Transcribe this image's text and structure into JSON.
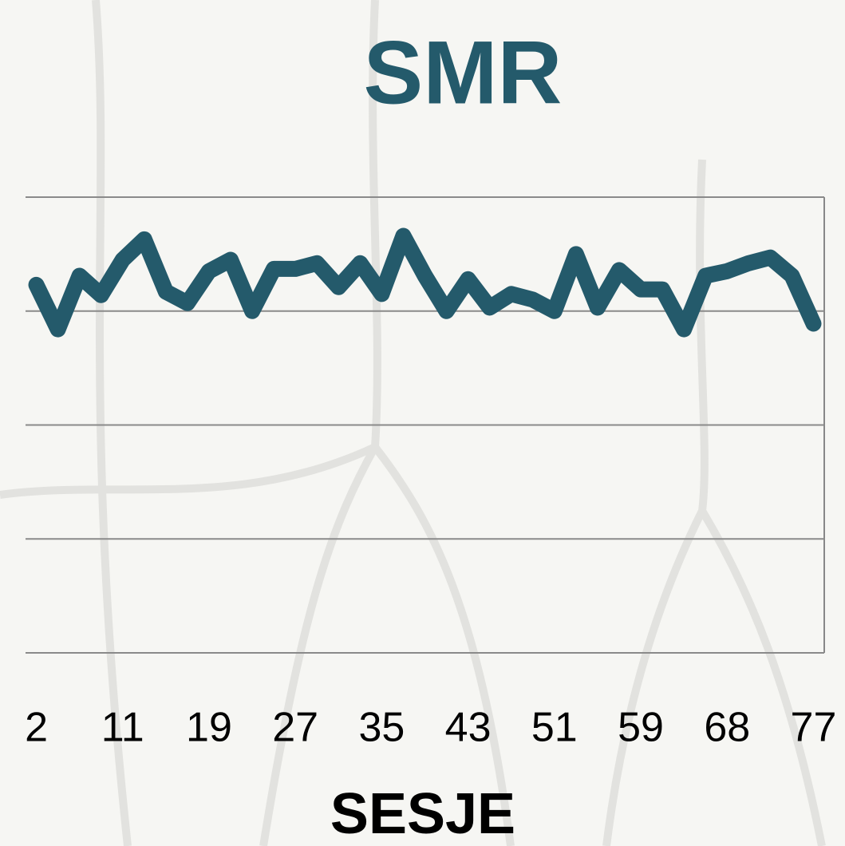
{
  "chart_data": {
    "type": "line",
    "title": "SMR",
    "x_label": "SESJE",
    "categories": [
      "2",
      null,
      null,
      null,
      "11",
      null,
      null,
      null,
      "19",
      null,
      null,
      null,
      "27",
      null,
      null,
      null,
      "35",
      null,
      null,
      null,
      "43",
      null,
      null,
      null,
      "51",
      null,
      null,
      null,
      "59",
      null,
      null,
      null,
      "68",
      null,
      null,
      null,
      "77"
    ],
    "series": [
      {
        "name": "SMR",
        "color": "#245a6b",
        "values": [
          3.23,
          2.84,
          3.31,
          3.14,
          3.45,
          3.63,
          3.17,
          3.07,
          3.35,
          3.45,
          3.0,
          3.37,
          3.37,
          3.42,
          3.21,
          3.42,
          3.15,
          3.66,
          3.31,
          3.0,
          3.28,
          3.03,
          3.15,
          3.1,
          3.0,
          3.5,
          3.03,
          3.36,
          3.19,
          3.19,
          2.84,
          3.31,
          3.35,
          3.42,
          3.47,
          3.31,
          2.89
        ]
      }
    ],
    "ylim": [
      0,
      4
    ],
    "yticks": [
      0,
      1,
      2,
      3,
      4
    ],
    "show_ytick_labels": false,
    "grid": true
  }
}
